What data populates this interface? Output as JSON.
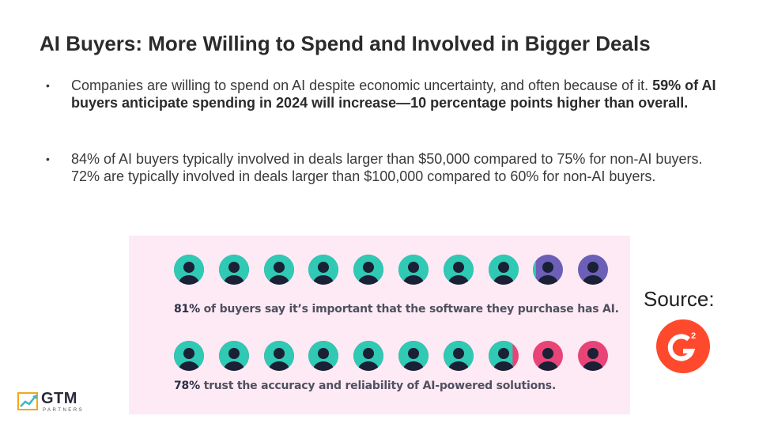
{
  "slide": {
    "title": "AI Buyers: More Willing to Spend and Involved in Bigger Deals",
    "bullets": [
      {
        "text": "Companies are willing to spend on AI despite economic uncertainty, and often because of it. ",
        "bold": "59% of AI buyers anticipate spending in 2024 will increase—10 percentage points higher than overall."
      },
      {
        "text": "84% of AI buyers typically involved in deals larger than $50,000 compared to 75% for non-AI buyers. 72% are typically involved in deals larger than $100,000 compared to 60% for non-AI buyers."
      }
    ]
  },
  "infographic": {
    "colors": {
      "teal": "#2fc9b4",
      "purple": "#6b5fb8",
      "pink": "#e84478",
      "figure": "#1a2035",
      "panel": "#fdeaf4"
    },
    "stats": [
      {
        "pct": "81%",
        "text": " of buyers say it’s important that the software they purchase has AI.",
        "value": 81
      },
      {
        "pct": "78%",
        "text": " trust the accuracy and reliability of AI-powered solutions.",
        "value": 78
      }
    ]
  },
  "source": {
    "label": "Source:",
    "logo": "G2",
    "logo_color": "#ff492c"
  },
  "brand": {
    "name": "GTM",
    "sub": "PARTNERS"
  }
}
